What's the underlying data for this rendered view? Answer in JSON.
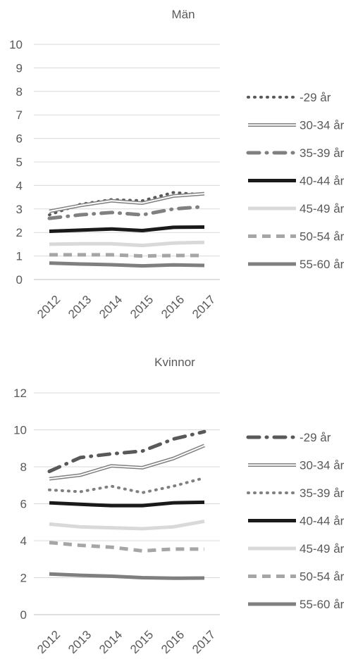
{
  "chart_data": [
    {
      "type": "line",
      "title": "Män",
      "categories": [
        "2012",
        "2013",
        "2014",
        "2015",
        "2016",
        "2017"
      ],
      "ylim": [
        0,
        10
      ],
      "yticks": [
        0,
        1,
        2,
        3,
        4,
        5,
        6,
        7,
        8,
        9,
        10
      ],
      "grid": true,
      "legend_position": "right",
      "series": [
        {
          "name": "-29 år",
          "values": [
            2.75,
            3.2,
            3.4,
            3.35,
            3.7,
            3.6
          ],
          "color": "#595959",
          "style": "dotted",
          "width": 4
        },
        {
          "name": "30-34 år",
          "values": [
            2.9,
            3.15,
            3.35,
            3.25,
            3.55,
            3.65
          ],
          "color": "#808080",
          "style": "double",
          "width": 5
        },
        {
          "name": "35-39 år",
          "values": [
            2.6,
            2.75,
            2.85,
            2.75,
            3.0,
            3.1
          ],
          "color": "#808080",
          "style": "dashdot",
          "width": 5
        },
        {
          "name": "40-44 år",
          "values": [
            2.05,
            2.1,
            2.15,
            2.08,
            2.22,
            2.23
          ],
          "color": "#1a1a1a",
          "style": "solid",
          "width": 5
        },
        {
          "name": "45-49 år",
          "values": [
            1.5,
            1.52,
            1.52,
            1.45,
            1.55,
            1.58
          ],
          "color": "#d9d9d9",
          "style": "solid",
          "width": 5
        },
        {
          "name": "50-54 år",
          "values": [
            1.05,
            1.05,
            1.05,
            1.0,
            1.02,
            1.02
          ],
          "color": "#a6a6a6",
          "style": "dashed",
          "width": 5
        },
        {
          "name": "55-60 år",
          "values": [
            0.7,
            0.66,
            0.63,
            0.58,
            0.62,
            0.6
          ],
          "color": "#7f7f7f",
          "style": "solid",
          "width": 5
        }
      ]
    },
    {
      "type": "line",
      "title": "Kvinnor",
      "categories": [
        "2012",
        "2013",
        "2014",
        "2015",
        "2016",
        "2017"
      ],
      "ylim": [
        0,
        12
      ],
      "yticks": [
        0,
        2,
        4,
        6,
        8,
        10,
        12
      ],
      "grid": true,
      "legend_position": "right",
      "series": [
        {
          "name": "-29 år",
          "values": [
            7.75,
            8.5,
            8.7,
            8.85,
            9.5,
            9.9
          ],
          "color": "#595959",
          "style": "dashdot",
          "width": 5
        },
        {
          "name": "30-34 år",
          "values": [
            7.35,
            7.55,
            8.05,
            7.95,
            8.45,
            9.15
          ],
          "color": "#808080",
          "style": "double",
          "width": 5
        },
        {
          "name": "35-39 år",
          "values": [
            6.75,
            6.65,
            6.95,
            6.6,
            6.95,
            7.4
          ],
          "color": "#808080",
          "style": "dotted",
          "width": 4
        },
        {
          "name": "40-44 år",
          "values": [
            6.05,
            5.97,
            5.9,
            5.9,
            6.05,
            6.08
          ],
          "color": "#1a1a1a",
          "style": "solid",
          "width": 5
        },
        {
          "name": "45-49 år",
          "values": [
            4.9,
            4.75,
            4.7,
            4.65,
            4.75,
            5.05
          ],
          "color": "#d9d9d9",
          "style": "solid",
          "width": 5
        },
        {
          "name": "50-54 år",
          "values": [
            3.9,
            3.75,
            3.65,
            3.45,
            3.55,
            3.55
          ],
          "color": "#a6a6a6",
          "style": "dashed",
          "width": 5
        },
        {
          "name": "55-60 år",
          "values": [
            2.2,
            2.13,
            2.08,
            2.0,
            1.97,
            1.98
          ],
          "color": "#7f7f7f",
          "style": "solid",
          "width": 5
        }
      ]
    }
  ]
}
